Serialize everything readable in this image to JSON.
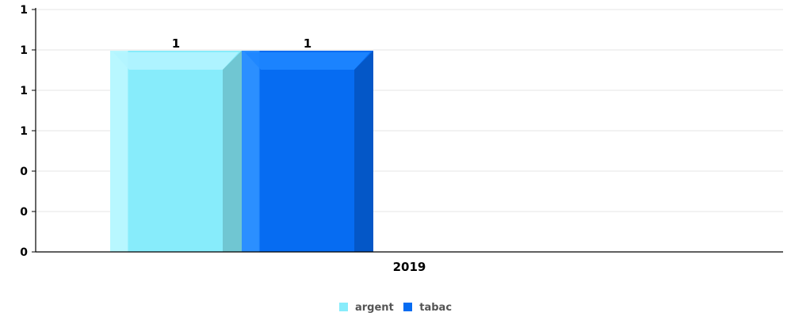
{
  "chart_data": {
    "type": "bar",
    "categories": [
      "2019"
    ],
    "series": [
      {
        "name": "argent",
        "values": [
          1
        ],
        "color": "#87ECFB",
        "data_label": "1"
      },
      {
        "name": "tabac",
        "values": [
          1
        ],
        "color": "#066CF2",
        "data_label": "1"
      }
    ],
    "y_tick_labels": [
      "0",
      "0",
      "0",
      "1",
      "1",
      "1",
      "1"
    ],
    "ylim": [
      0,
      1.2
    ],
    "grid": true,
    "legend_position": "bottom-center",
    "title": "",
    "xlabel": "",
    "ylabel": ""
  }
}
